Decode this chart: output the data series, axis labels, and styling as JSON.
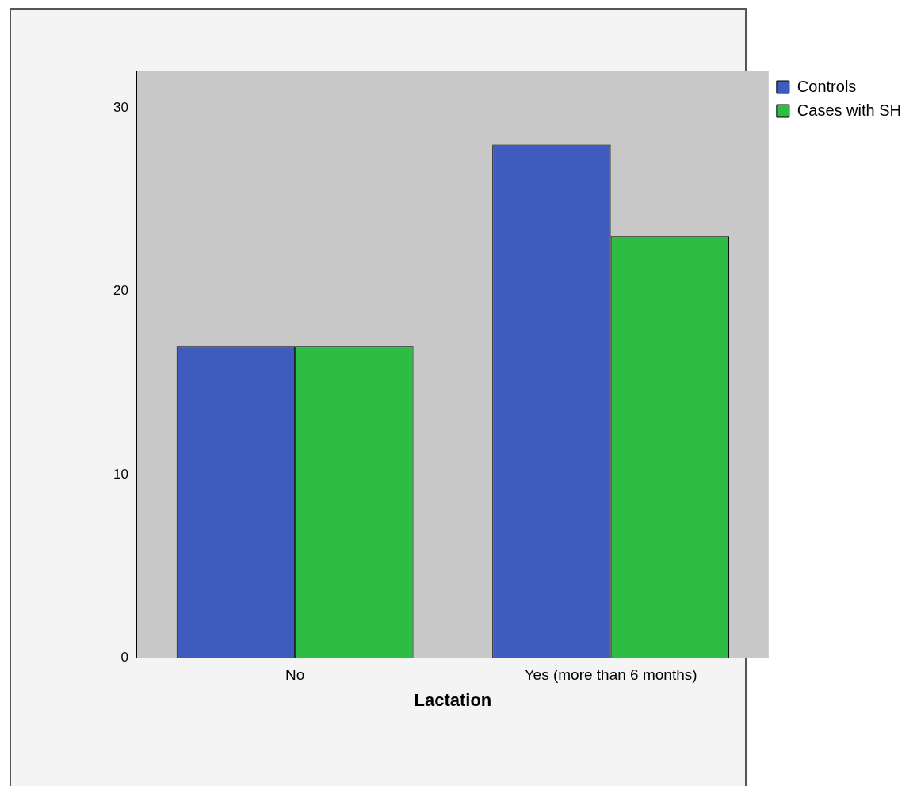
{
  "chart_data": {
    "type": "bar",
    "xlabel": "Lactation",
    "categories": [
      "No",
      "Yes (more than 6 months)"
    ],
    "series": [
      {
        "name": "Controls",
        "color": "#3f5bbd",
        "values": [
          17,
          28
        ]
      },
      {
        "name": "Cases with SH",
        "color": "#2dbd45",
        "values": [
          17,
          23
        ]
      }
    ],
    "ylim": [
      0,
      32
    ],
    "yticks": [
      0,
      10,
      20,
      30
    ],
    "grid": false,
    "legend": "top right"
  }
}
